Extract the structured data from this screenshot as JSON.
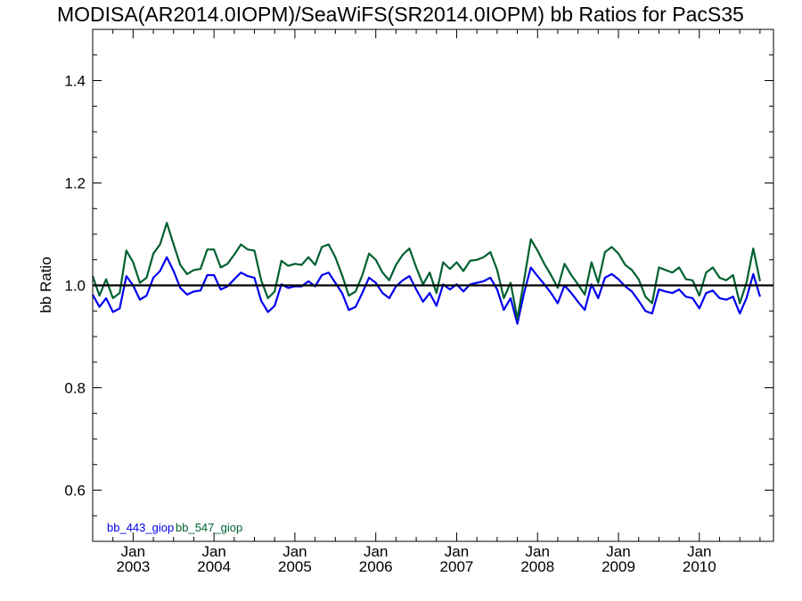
{
  "chart_data": {
    "type": "line",
    "title": "MODISA(AR2014.0IOPM)/SeaWiFS(SR2014.0IOPM)  bb Ratios for PacS35",
    "ylabel": "bb Ratio",
    "xlabel": "",
    "ylim": [
      0.5,
      1.5
    ],
    "yticks": [
      0.6,
      0.8,
      1.0,
      1.2,
      1.4
    ],
    "ytick_labels": [
      "0.6",
      "0.8",
      "1.0",
      "1.2",
      "1.4"
    ],
    "xlim": [
      "2002-07",
      "2010-12"
    ],
    "xticks": [
      {
        "month": "Jan",
        "year": "2003"
      },
      {
        "month": "Jan",
        "year": "2004"
      },
      {
        "month": "Jan",
        "year": "2005"
      },
      {
        "month": "Jan",
        "year": "2006"
      },
      {
        "month": "Jan",
        "year": "2007"
      },
      {
        "month": "Jan",
        "year": "2008"
      },
      {
        "month": "Jan",
        "year": "2009"
      },
      {
        "month": "Jan",
        "year": "2010"
      }
    ],
    "reference_line": 1.0,
    "grid": false,
    "legend_placement": "bottom-left",
    "colors": {
      "bb_443_giop": "#0000ee",
      "bb_547_giop": "#006030",
      "reference": "#000000"
    },
    "series": [
      {
        "name": "bb_443_giop",
        "points": [
          [
            "2002-07",
            0.982
          ],
          [
            "2002-08",
            0.958
          ],
          [
            "2002-09",
            0.975
          ],
          [
            "2002-10",
            0.948
          ],
          [
            "2002-11",
            0.955
          ],
          [
            "2002-12",
            1.018
          ],
          [
            "2003-01",
            1.0
          ],
          [
            "2003-02",
            0.972
          ],
          [
            "2003-03",
            0.98
          ],
          [
            "2003-04",
            1.015
          ],
          [
            "2003-05",
            1.028
          ],
          [
            "2003-06",
            1.055
          ],
          [
            "2003-07",
            1.028
          ],
          [
            "2003-08",
            0.995
          ],
          [
            "2003-09",
            0.982
          ],
          [
            "2003-10",
            0.988
          ],
          [
            "2003-11",
            0.99
          ],
          [
            "2003-12",
            1.02
          ],
          [
            "2004-01",
            1.02
          ],
          [
            "2004-02",
            0.992
          ],
          [
            "2004-03",
            0.998
          ],
          [
            "2004-04",
            1.012
          ],
          [
            "2004-05",
            1.025
          ],
          [
            "2004-06",
            1.018
          ],
          [
            "2004-07",
            1.015
          ],
          [
            "2004-08",
            0.97
          ],
          [
            "2004-09",
            0.948
          ],
          [
            "2004-10",
            0.96
          ],
          [
            "2004-11",
            1.002
          ],
          [
            "2004-12",
            0.995
          ],
          [
            "2005-01",
            0.998
          ],
          [
            "2005-02",
            0.998
          ],
          [
            "2005-03",
            1.008
          ],
          [
            "2005-04",
            0.998
          ],
          [
            "2005-05",
            1.02
          ],
          [
            "2005-06",
            1.025
          ],
          [
            "2005-07",
            1.005
          ],
          [
            "2005-08",
            0.985
          ],
          [
            "2005-09",
            0.952
          ],
          [
            "2005-10",
            0.958
          ],
          [
            "2005-11",
            0.985
          ],
          [
            "2005-12",
            1.015
          ],
          [
            "2006-01",
            1.005
          ],
          [
            "2006-02",
            0.985
          ],
          [
            "2006-03",
            0.975
          ],
          [
            "2006-04",
            0.998
          ],
          [
            "2006-05",
            1.01
          ],
          [
            "2006-06",
            1.018
          ],
          [
            "2006-07",
            0.992
          ],
          [
            "2006-08",
            0.968
          ],
          [
            "2006-09",
            0.985
          ],
          [
            "2006-10",
            0.96
          ],
          [
            "2006-11",
            1.002
          ],
          [
            "2006-12",
            0.992
          ],
          [
            "2007-01",
            1.002
          ],
          [
            "2007-02",
            0.988
          ],
          [
            "2007-03",
            1.002
          ],
          [
            "2007-04",
            1.005
          ],
          [
            "2007-05",
            1.008
          ],
          [
            "2007-06",
            1.015
          ],
          [
            "2007-07",
            0.992
          ],
          [
            "2007-08",
            0.952
          ],
          [
            "2007-09",
            0.975
          ],
          [
            "2007-10",
            0.925
          ],
          [
            "2007-11",
            0.985
          ],
          [
            "2007-12",
            1.035
          ],
          [
            "2008-01",
            1.018
          ],
          [
            "2008-02",
            1.002
          ],
          [
            "2008-03",
            0.985
          ],
          [
            "2008-04",
            0.965
          ],
          [
            "2008-05",
            1.0
          ],
          [
            "2008-06",
            0.985
          ],
          [
            "2008-07",
            0.968
          ],
          [
            "2008-08",
            0.952
          ],
          [
            "2008-09",
            1.002
          ],
          [
            "2008-10",
            0.975
          ],
          [
            "2008-11",
            1.015
          ],
          [
            "2008-12",
            1.022
          ],
          [
            "2009-01",
            1.012
          ],
          [
            "2009-02",
            0.998
          ],
          [
            "2009-03",
            0.988
          ],
          [
            "2009-04",
            0.97
          ],
          [
            "2009-05",
            0.95
          ],
          [
            "2009-06",
            0.945
          ],
          [
            "2009-07",
            0.992
          ],
          [
            "2009-08",
            0.988
          ],
          [
            "2009-09",
            0.985
          ],
          [
            "2009-10",
            0.992
          ],
          [
            "2009-11",
            0.978
          ],
          [
            "2009-12",
            0.975
          ],
          [
            "2010-01",
            0.955
          ],
          [
            "2010-02",
            0.985
          ],
          [
            "2010-03",
            0.99
          ],
          [
            "2010-04",
            0.975
          ],
          [
            "2010-05",
            0.972
          ],
          [
            "2010-06",
            0.978
          ],
          [
            "2010-07",
            0.945
          ],
          [
            "2010-08",
            0.975
          ],
          [
            "2010-09",
            1.022
          ],
          [
            "2010-10",
            0.978
          ]
        ]
      },
      {
        "name": "bb_547_giop",
        "points": [
          [
            "2002-07",
            1.018
          ],
          [
            "2002-08",
            0.98
          ],
          [
            "2002-09",
            1.012
          ],
          [
            "2002-10",
            0.975
          ],
          [
            "2002-11",
            0.985
          ],
          [
            "2002-12",
            1.068
          ],
          [
            "2003-01",
            1.045
          ],
          [
            "2003-02",
            1.005
          ],
          [
            "2003-03",
            1.015
          ],
          [
            "2003-04",
            1.062
          ],
          [
            "2003-05",
            1.08
          ],
          [
            "2003-06",
            1.122
          ],
          [
            "2003-07",
            1.08
          ],
          [
            "2003-08",
            1.04
          ],
          [
            "2003-09",
            1.022
          ],
          [
            "2003-10",
            1.03
          ],
          [
            "2003-11",
            1.032
          ],
          [
            "2003-12",
            1.07
          ],
          [
            "2004-01",
            1.07
          ],
          [
            "2004-02",
            1.035
          ],
          [
            "2004-03",
            1.042
          ],
          [
            "2004-04",
            1.06
          ],
          [
            "2004-05",
            1.08
          ],
          [
            "2004-06",
            1.07
          ],
          [
            "2004-07",
            1.068
          ],
          [
            "2004-08",
            1.01
          ],
          [
            "2004-09",
            0.975
          ],
          [
            "2004-10",
            0.988
          ],
          [
            "2004-11",
            1.048
          ],
          [
            "2004-12",
            1.038
          ],
          [
            "2005-01",
            1.042
          ],
          [
            "2005-02",
            1.04
          ],
          [
            "2005-03",
            1.055
          ],
          [
            "2005-04",
            1.04
          ],
          [
            "2005-05",
            1.075
          ],
          [
            "2005-06",
            1.08
          ],
          [
            "2005-07",
            1.055
          ],
          [
            "2005-08",
            1.02
          ],
          [
            "2005-09",
            0.98
          ],
          [
            "2005-10",
            0.988
          ],
          [
            "2005-11",
            1.02
          ],
          [
            "2005-12",
            1.062
          ],
          [
            "2006-01",
            1.05
          ],
          [
            "2006-02",
            1.025
          ],
          [
            "2006-03",
            1.01
          ],
          [
            "2006-04",
            1.04
          ],
          [
            "2006-05",
            1.06
          ],
          [
            "2006-06",
            1.072
          ],
          [
            "2006-07",
            1.035
          ],
          [
            "2006-08",
            1.002
          ],
          [
            "2006-09",
            1.025
          ],
          [
            "2006-10",
            0.985
          ],
          [
            "2006-11",
            1.045
          ],
          [
            "2006-12",
            1.032
          ],
          [
            "2007-01",
            1.045
          ],
          [
            "2007-02",
            1.028
          ],
          [
            "2007-03",
            1.048
          ],
          [
            "2007-04",
            1.05
          ],
          [
            "2007-05",
            1.055
          ],
          [
            "2007-06",
            1.065
          ],
          [
            "2007-07",
            1.03
          ],
          [
            "2007-08",
            0.975
          ],
          [
            "2007-09",
            1.005
          ],
          [
            "2007-10",
            0.935
          ],
          [
            "2007-11",
            1.01
          ],
          [
            "2007-12",
            1.09
          ],
          [
            "2008-01",
            1.068
          ],
          [
            "2008-02",
            1.042
          ],
          [
            "2008-03",
            1.02
          ],
          [
            "2008-04",
            0.995
          ],
          [
            "2008-05",
            1.042
          ],
          [
            "2008-06",
            1.02
          ],
          [
            "2008-07",
            1.002
          ],
          [
            "2008-08",
            0.982
          ],
          [
            "2008-09",
            1.045
          ],
          [
            "2008-10",
            1.005
          ],
          [
            "2008-11",
            1.065
          ],
          [
            "2008-12",
            1.075
          ],
          [
            "2009-01",
            1.062
          ],
          [
            "2009-02",
            1.04
          ],
          [
            "2009-03",
            1.03
          ],
          [
            "2009-04",
            1.012
          ],
          [
            "2009-05",
            0.978
          ],
          [
            "2009-06",
            0.965
          ],
          [
            "2009-07",
            1.035
          ],
          [
            "2009-08",
            1.03
          ],
          [
            "2009-09",
            1.025
          ],
          [
            "2009-10",
            1.035
          ],
          [
            "2009-11",
            1.012
          ],
          [
            "2009-12",
            1.01
          ],
          [
            "2010-01",
            0.98
          ],
          [
            "2010-02",
            1.025
          ],
          [
            "2010-03",
            1.035
          ],
          [
            "2010-04",
            1.015
          ],
          [
            "2010-05",
            1.01
          ],
          [
            "2010-06",
            1.02
          ],
          [
            "2010-07",
            0.965
          ],
          [
            "2010-08",
            1.005
          ],
          [
            "2010-09",
            1.072
          ],
          [
            "2010-10",
            1.008
          ]
        ]
      }
    ]
  }
}
